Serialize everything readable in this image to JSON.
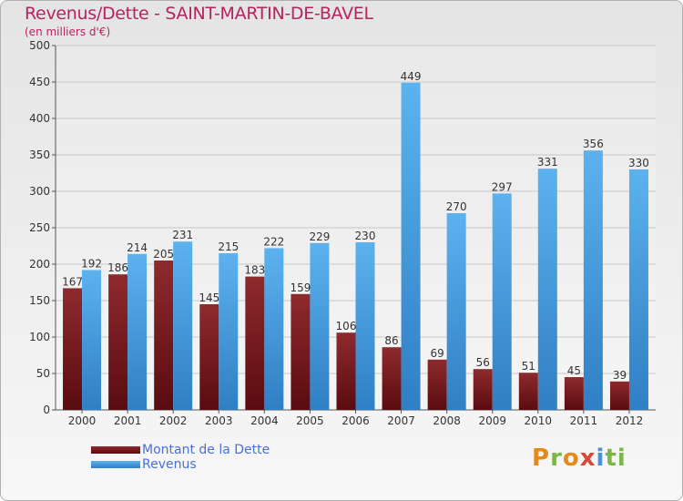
{
  "header": {
    "title": "Revenus/Dette - SAINT-MARTIN-DE-BAVEL",
    "subtitle": "(en milliers d'€)"
  },
  "colors": {
    "dette": "#7a1a1e",
    "revenus": "#4aa3e6",
    "title": "#b4245e",
    "legend_text": "#4a6fd8"
  },
  "legend": {
    "items": [
      {
        "label": "Montant de la Dette",
        "color": "#7a1a1e"
      },
      {
        "label": "Revenus",
        "color": "#4aa3e6"
      }
    ]
  },
  "logo": {
    "text": "Proxiti",
    "letters": [
      "P",
      "r",
      "o",
      "x",
      "i",
      "ti"
    ]
  },
  "chart_data": {
    "type": "bar",
    "categories": [
      "2000",
      "2001",
      "2002",
      "2003",
      "2004",
      "2005",
      "2006",
      "2007",
      "2008",
      "2009",
      "2010",
      "2011",
      "2012"
    ],
    "series": [
      {
        "name": "Montant de la Dette",
        "values": [
          167,
          186,
          205,
          145,
          183,
          159,
          106,
          86,
          69,
          56,
          51,
          45,
          39
        ]
      },
      {
        "name": "Revenus",
        "values": [
          192,
          214,
          231,
          215,
          222,
          229,
          230,
          449,
          270,
          297,
          331,
          356,
          330
        ]
      }
    ],
    "ylim": [
      0,
      500
    ],
    "yticks": [
      0,
      50,
      100,
      150,
      200,
      250,
      300,
      350,
      400,
      450,
      500
    ],
    "grid": true
  }
}
